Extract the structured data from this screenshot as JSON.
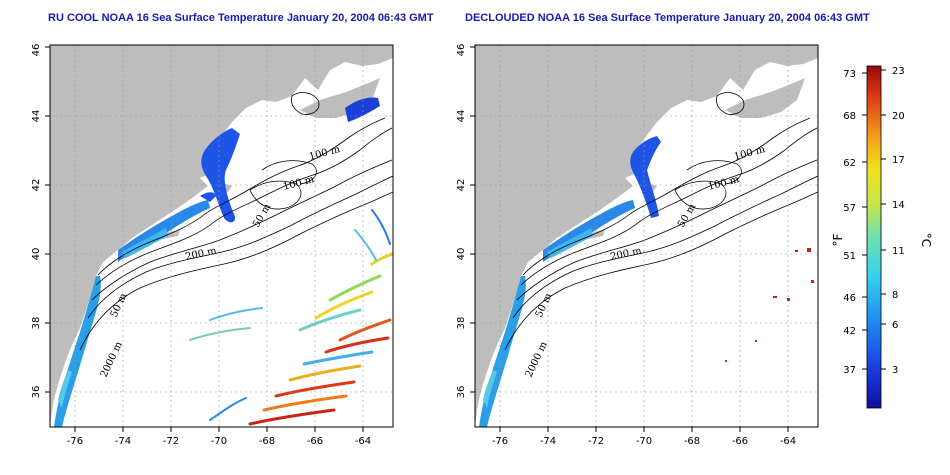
{
  "titles": {
    "left": "RU COOL NOAA 16 Sea Surface Temperature January 20, 2004 06:43 GMT",
    "right": "DECLOUDED NOAA 16 Sea Surface Temperature January 20, 2004 06:43 GMT"
  },
  "axes": {
    "x_ticks": [
      "-76",
      "-74",
      "-72",
      "-70",
      "-68",
      "-66",
      "-64"
    ],
    "y_ticks": [
      "36",
      "38",
      "40",
      "42",
      "44",
      "46"
    ]
  },
  "contour_labels": {
    "left": [
      "100 m",
      "100 m",
      "50 m",
      "200 m",
      "50 m",
      "2000 m"
    ],
    "right": [
      "100 m",
      "100 m",
      "50 m",
      "200 m",
      "50 m",
      "2000 m"
    ]
  },
  "colorbar": {
    "f_label": "°F",
    "c_label": "°C",
    "f_ticks": [
      "73",
      "68",
      "62",
      "57",
      "51",
      "46",
      "42",
      "37"
    ],
    "c_ticks": [
      "23",
      "20",
      "17",
      "14",
      "11",
      "8",
      "6",
      "3"
    ]
  },
  "colors": {
    "land": "#bdbdbd",
    "ocean": "#ffffff",
    "title": "#1a1ab0",
    "grid": "#9a9a9a"
  }
}
